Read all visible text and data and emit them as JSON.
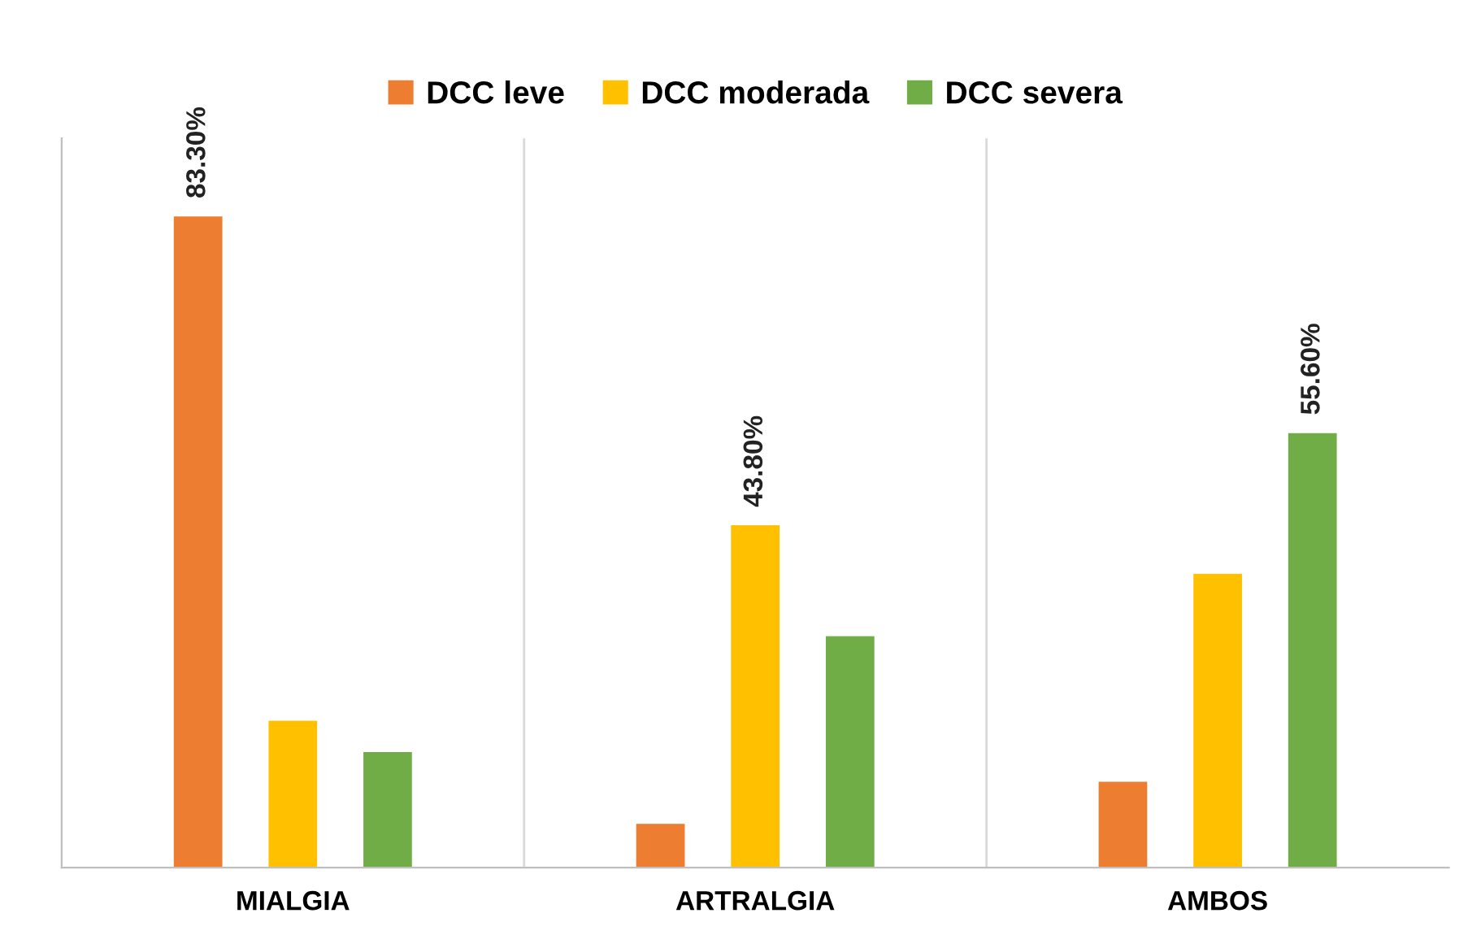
{
  "chart_data": {
    "type": "bar",
    "categories": [
      "MIALGIA",
      "ARTRALGIA",
      "AMBOS"
    ],
    "series": [
      {
        "name": "DCC leve",
        "color": "#ed7d31",
        "values": [
          83.3,
          5.6,
          11.0
        ],
        "value_labels": [
          "83.30%",
          null,
          null
        ]
      },
      {
        "name": "DCC moderada",
        "color": "#ffc000",
        "values": [
          18.8,
          43.8,
          37.6
        ],
        "value_labels": [
          null,
          "43.80%",
          null
        ]
      },
      {
        "name": "DCC severa",
        "color": "#70ad47",
        "values": [
          14.8,
          29.6,
          55.6
        ],
        "value_labels": [
          null,
          null,
          "55.60%"
        ]
      }
    ],
    "grid": "x",
    "legend": "top"
  }
}
